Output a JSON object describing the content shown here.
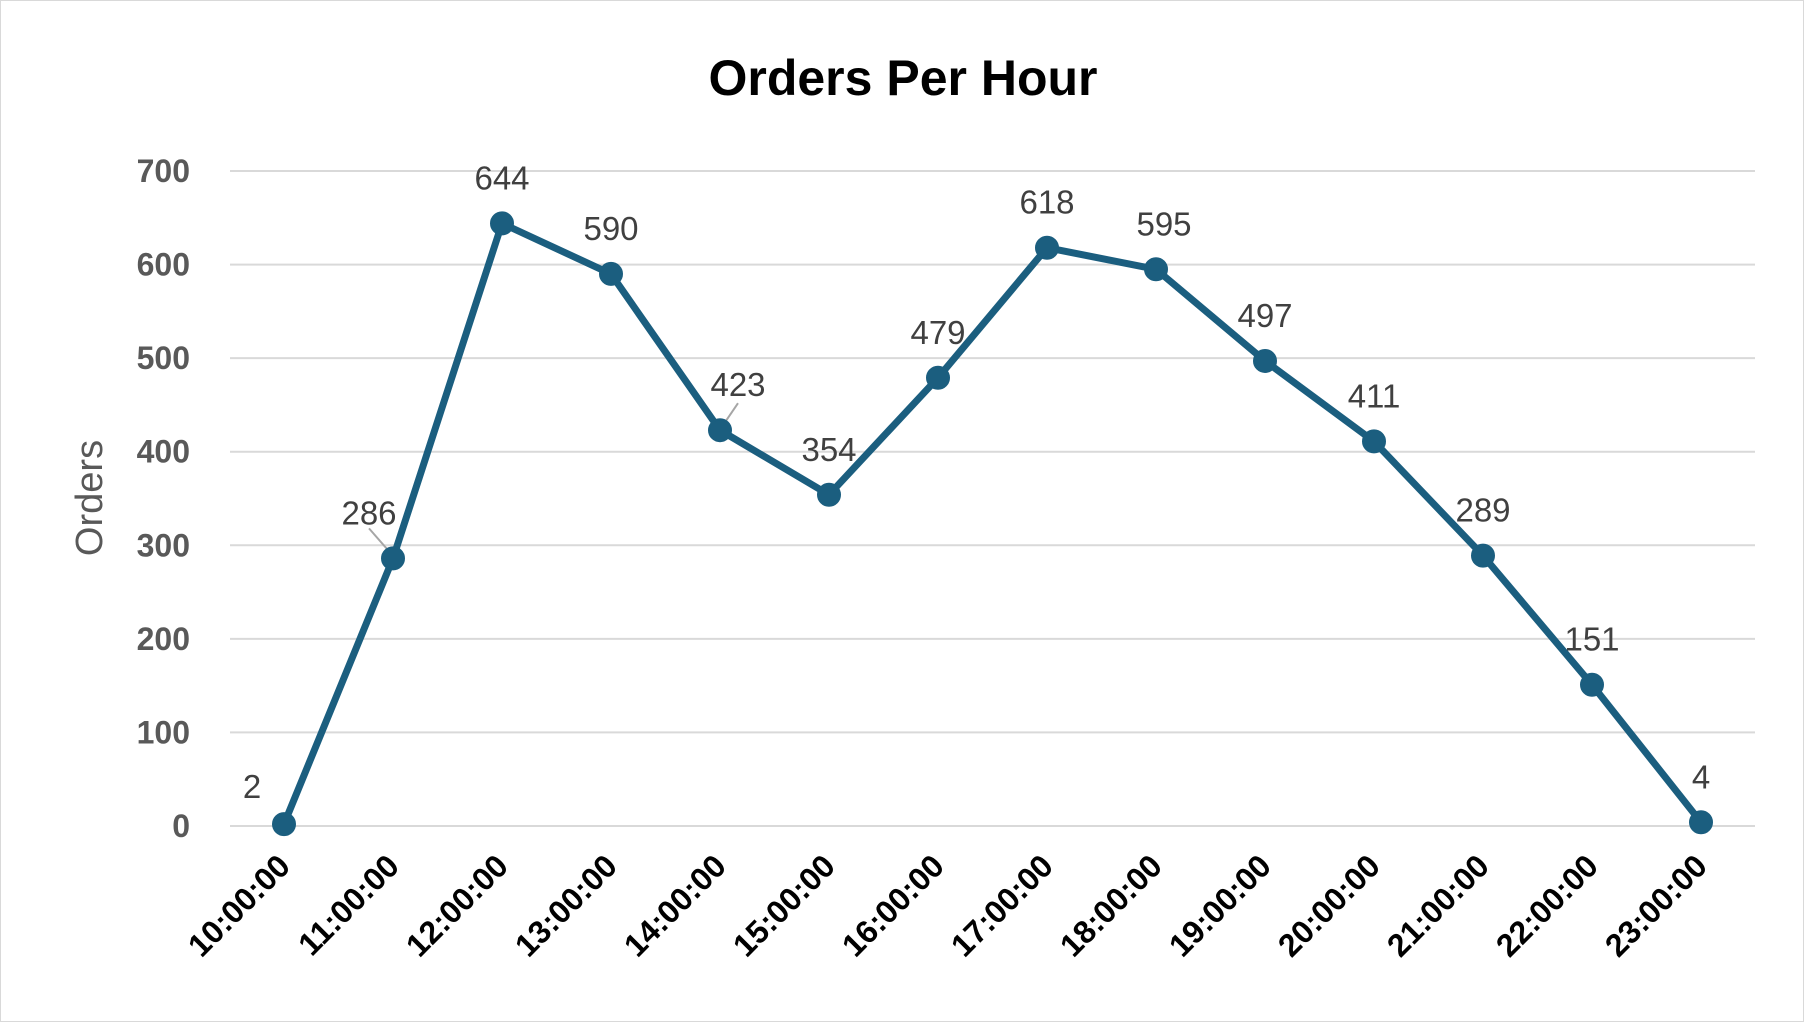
{
  "chart_data": {
    "type": "line",
    "title": "Orders Per Hour",
    "xlabel": "",
    "ylabel": "Orders",
    "ylim": [
      0,
      700
    ],
    "yticks": [
      0,
      100,
      200,
      300,
      400,
      500,
      600,
      700
    ],
    "grid": true,
    "legend": "none",
    "categories": [
      "10:00:00",
      "11:00:00",
      "12:00:00",
      "13:00:00",
      "14:00:00",
      "15:00:00",
      "16:00:00",
      "17:00:00",
      "18:00:00",
      "19:00:00",
      "20:00:00",
      "21:00:00",
      "22:00:00",
      "23:00:00"
    ],
    "series": [
      {
        "values": [
          2,
          286,
          644,
          590,
          423,
          354,
          479,
          618,
          595,
          497,
          411,
          289,
          151,
          4
        ],
        "color": "#1b5e7f"
      }
    ]
  }
}
